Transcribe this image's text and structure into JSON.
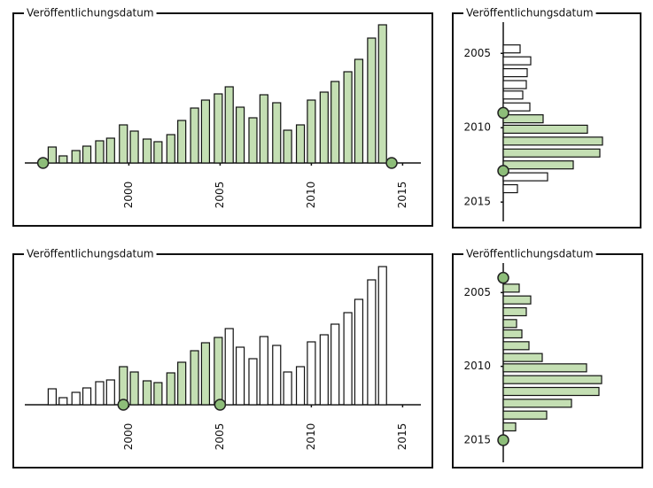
{
  "chart_data": [
    {
      "type": "bar",
      "title": "Veröffentlichungsdatum",
      "horizontal": false,
      "x": [
        1995.8,
        1996.4,
        1997.1,
        1997.7,
        1998.4,
        1999.0,
        1999.7,
        2000.3,
        2001.0,
        2001.6,
        2002.3,
        2002.9,
        2003.6,
        2004.2,
        2004.9,
        2005.5,
        2006.1,
        2006.8,
        2007.4,
        2008.1,
        2008.7,
        2009.4,
        2010.0,
        2010.7,
        2011.3,
        2012.0,
        2012.6,
        2013.3,
        2013.9
      ],
      "values": [
        18,
        8,
        14,
        19,
        25,
        28,
        43,
        36,
        27,
        24,
        32,
        48,
        62,
        71,
        78,
        86,
        63,
        51,
        77,
        68,
        37,
        43,
        71,
        80,
        92,
        103,
        117,
        141,
        156
      ],
      "xlim": [
        1994.3,
        2016
      ],
      "xticks": [
        2000,
        2005,
        2010,
        2015
      ],
      "ylim": [
        0,
        160
      ],
      "selection": [
        1995.3,
        2014.4
      ],
      "color": "#c4dfb3",
      "handle_color": "#8dbd79"
    },
    {
      "type": "bar",
      "title": "Veröffentlichungsdatum",
      "horizontal": true,
      "x": [
        2004.7,
        2005.5,
        2006.3,
        2007.1,
        2007.8,
        2008.6,
        2009.4,
        2010.1,
        2010.9,
        2011.7,
        2012.5,
        2013.3,
        2014.1
      ],
      "values": [
        19,
        31,
        27,
        26,
        22,
        30,
        45,
        95,
        112,
        109,
        79,
        50,
        16
      ],
      "xlim": [
        2002.9,
        2016.3
      ],
      "xticks": [
        2005,
        2010,
        2015
      ],
      "ylim": [
        0,
        120
      ],
      "selection": [
        2009.0,
        2012.9
      ],
      "color": "#c4dfb3",
      "handle_color": "#8dbd79"
    },
    {
      "type": "bar",
      "title": "Veröffentlichungsdatum",
      "horizontal": false,
      "x": [
        1995.8,
        1996.4,
        1997.1,
        1997.7,
        1998.4,
        1999.0,
        1999.7,
        2000.3,
        2001.0,
        2001.6,
        2002.3,
        2002.9,
        2003.6,
        2004.2,
        2004.9,
        2005.5,
        2006.1,
        2006.8,
        2007.4,
        2008.1,
        2008.7,
        2009.4,
        2010.0,
        2010.7,
        2011.3,
        2012.0,
        2012.6,
        2013.3,
        2013.9
      ],
      "values": [
        18,
        8,
        14,
        19,
        26,
        28,
        43,
        37,
        27,
        25,
        36,
        48,
        61,
        70,
        76,
        86,
        65,
        52,
        77,
        67,
        37,
        43,
        71,
        79,
        91,
        104,
        119,
        141,
        156
      ],
      "xlim": [
        1994.3,
        2016
      ],
      "xticks": [
        2000,
        2005,
        2010,
        2015
      ],
      "ylim": [
        0,
        160
      ],
      "selection": [
        1999.7,
        2005.0
      ],
      "color": "#c4dfb3",
      "handle_color": "#8dbd79"
    },
    {
      "type": "bar",
      "title": "Veröffentlichungsdatum",
      "horizontal": true,
      "x": [
        2004.7,
        2005.5,
        2006.3,
        2007.1,
        2007.8,
        2008.6,
        2009.4,
        2010.1,
        2010.9,
        2011.7,
        2012.5,
        2013.3,
        2014.1
      ],
      "values": [
        18,
        31,
        26,
        15,
        21,
        29,
        44,
        94,
        111,
        108,
        77,
        49,
        14
      ],
      "xlim": [
        2003.0,
        2016.5
      ],
      "xticks": [
        2005,
        2010,
        2015
      ],
      "ylim": [
        0,
        120
      ],
      "selection": [
        2004.0,
        2015.0
      ],
      "color": "#c4dfb3",
      "handle_color": "#8dbd79"
    }
  ]
}
